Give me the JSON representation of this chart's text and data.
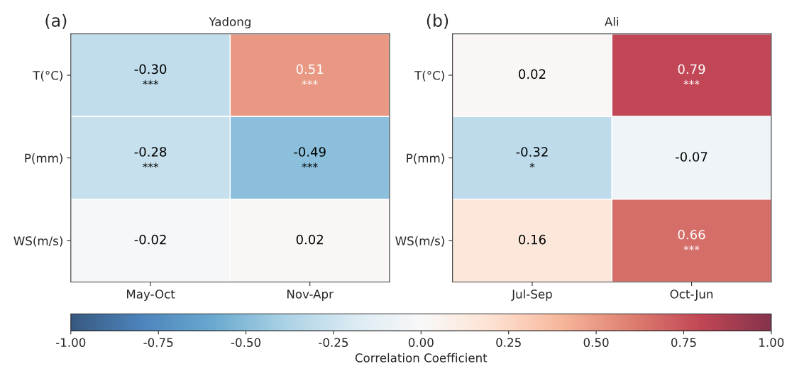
{
  "chart_data": [
    {
      "type": "heatmap",
      "title": "Yadong",
      "annotations": [
        "(a)"
      ],
      "categories": [
        "May-Oct",
        "Nov-Apr"
      ],
      "y_categories": [
        "T(°C)",
        "P(mm)",
        "WS(m/s)"
      ],
      "cells": [
        [
          -0.3,
          0.51
        ],
        [
          -0.28,
          -0.49
        ],
        [
          -0.02,
          0.02
        ]
      ],
      "cell_labels": [
        [
          "-0.30\n***",
          "0.51\n***"
        ],
        [
          "-0.28\n***",
          "-0.49\n***"
        ],
        [
          "-0.02",
          "0.02"
        ]
      ]
    },
    {
      "type": "heatmap",
      "title": "Ali",
      "annotations": [
        "(b)"
      ],
      "categories": [
        "Jul-Sep",
        "Oct-Jun"
      ],
      "y_categories": [
        "T(°C)",
        "P(mm)",
        "WS(m/s)"
      ],
      "cells": [
        [
          0.02,
          0.79
        ],
        [
          -0.32,
          -0.07
        ],
        [
          0.16,
          0.66
        ]
      ],
      "cell_labels": [
        [
          "0.02",
          "0.79\n***"
        ],
        [
          "-0.32\n*",
          "-0.07"
        ],
        [
          "0.16",
          "0.66\n***"
        ]
      ],
      "clim": [
        -1,
        1
      ],
      "clabel": "Correlation Coefficient",
      "cticks": [
        {
          "value": -1,
          "label": "-1.00"
        },
        {
          "value": -0.75,
          "label": "-0.75"
        },
        {
          "value": -0.5,
          "label": "-0.50"
        },
        {
          "value": -0.25,
          "label": "-0.25"
        },
        {
          "value": 0,
          "label": "0.00"
        },
        {
          "value": 0.25,
          "label": "0.25"
        },
        {
          "value": 0.5,
          "label": "0.50"
        },
        {
          "value": 0.75,
          "label": "0.75"
        },
        {
          "value": 1,
          "label": "1.00"
        }
      ]
    }
  ]
}
